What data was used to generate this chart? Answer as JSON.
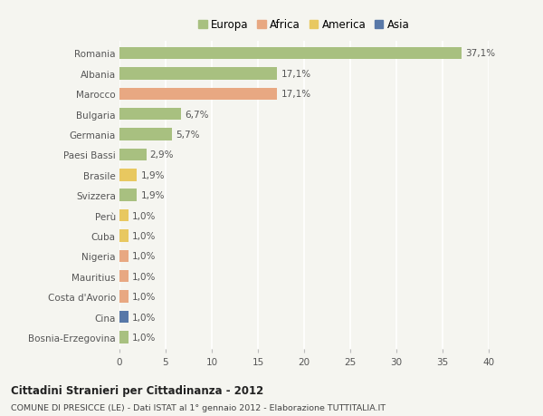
{
  "countries": [
    "Romania",
    "Albania",
    "Marocco",
    "Bulgaria",
    "Germania",
    "Paesi Bassi",
    "Brasile",
    "Svizzera",
    "Perù",
    "Cuba",
    "Nigeria",
    "Mauritius",
    "Costa d'Avorio",
    "Cina",
    "Bosnia-Erzegovina"
  ],
  "values": [
    37.1,
    17.1,
    17.1,
    6.7,
    5.7,
    2.9,
    1.9,
    1.9,
    1.0,
    1.0,
    1.0,
    1.0,
    1.0,
    1.0,
    1.0
  ],
  "labels": [
    "37,1%",
    "17,1%",
    "17,1%",
    "6,7%",
    "5,7%",
    "2,9%",
    "1,9%",
    "1,9%",
    "1,0%",
    "1,0%",
    "1,0%",
    "1,0%",
    "1,0%",
    "1,0%",
    "1,0%"
  ],
  "continents": [
    "Europa",
    "Europa",
    "Africa",
    "Europa",
    "Europa",
    "Europa",
    "America",
    "Europa",
    "America",
    "America",
    "Africa",
    "Africa",
    "Africa",
    "Asia",
    "Europa"
  ],
  "continent_colors": {
    "Europa": "#a8c080",
    "Africa": "#e8a882",
    "America": "#e8c860",
    "Asia": "#5878a8"
  },
  "legend_items": [
    "Europa",
    "Africa",
    "America",
    "Asia"
  ],
  "legend_colors": [
    "#a8c080",
    "#e8a882",
    "#e8c860",
    "#5878a8"
  ],
  "xlim": [
    0,
    40
  ],
  "xticks": [
    0,
    5,
    10,
    15,
    20,
    25,
    30,
    35,
    40
  ],
  "title": "Cittadini Stranieri per Cittadinanza - 2012",
  "subtitle": "COMUNE DI PRESICCE (LE) - Dati ISTAT al 1° gennaio 2012 - Elaborazione TUTTITALIA.IT",
  "bg_color": "#f5f5f0",
  "bar_height": 0.6,
  "grid_color": "#ffffff",
  "label_fontsize": 7.5,
  "tick_fontsize": 7.5,
  "legend_fontsize": 8.5
}
